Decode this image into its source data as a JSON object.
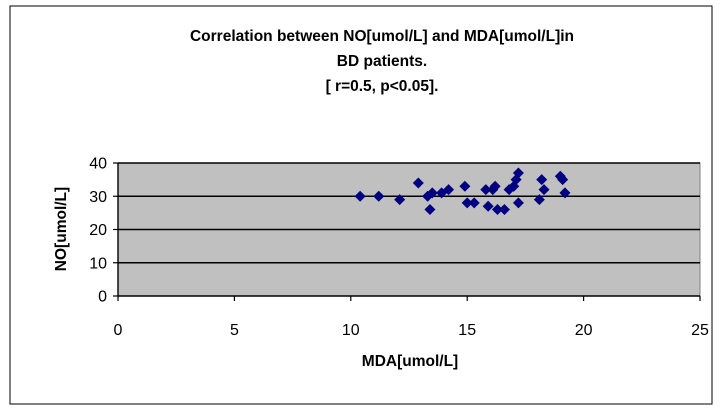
{
  "chart_data": {
    "type": "scatter",
    "title_lines": [
      "Correlation between NO[umol/L] and MDA[umol/L]in",
      "BD patients.",
      "[ r=0.5,  p<0.05]."
    ],
    "xlabel": "MDA[umol/L]",
    "ylabel": "NO[umol/L]",
    "xlim": [
      0,
      25
    ],
    "ylim": [
      0,
      40
    ],
    "x_ticks": [
      0,
      5,
      10,
      15,
      20,
      25
    ],
    "y_ticks": [
      0,
      10,
      20,
      30,
      40
    ],
    "grid": "horizontal",
    "legend": "none",
    "colors": {
      "marker": "#000080",
      "plot_area": "#c0c0c0",
      "gridline": "#000000"
    },
    "points": [
      {
        "x": 10.4,
        "y": 30
      },
      {
        "x": 11.2,
        "y": 30
      },
      {
        "x": 12.1,
        "y": 29
      },
      {
        "x": 12.9,
        "y": 34
      },
      {
        "x": 13.3,
        "y": 30
      },
      {
        "x": 13.4,
        "y": 26
      },
      {
        "x": 13.5,
        "y": 31
      },
      {
        "x": 13.9,
        "y": 31
      },
      {
        "x": 14.2,
        "y": 32
      },
      {
        "x": 14.9,
        "y": 33
      },
      {
        "x": 15.0,
        "y": 28
      },
      {
        "x": 15.3,
        "y": 28
      },
      {
        "x": 15.8,
        "y": 32
      },
      {
        "x": 15.9,
        "y": 27
      },
      {
        "x": 16.1,
        "y": 32
      },
      {
        "x": 16.2,
        "y": 33
      },
      {
        "x": 16.3,
        "y": 26
      },
      {
        "x": 16.6,
        "y": 26
      },
      {
        "x": 16.8,
        "y": 32
      },
      {
        "x": 17.0,
        "y": 33
      },
      {
        "x": 17.1,
        "y": 35
      },
      {
        "x": 17.2,
        "y": 37
      },
      {
        "x": 17.2,
        "y": 28
      },
      {
        "x": 18.1,
        "y": 29
      },
      {
        "x": 18.2,
        "y": 35
      },
      {
        "x": 18.3,
        "y": 32
      },
      {
        "x": 19.0,
        "y": 36
      },
      {
        "x": 19.1,
        "y": 35
      },
      {
        "x": 19.2,
        "y": 31
      }
    ]
  }
}
